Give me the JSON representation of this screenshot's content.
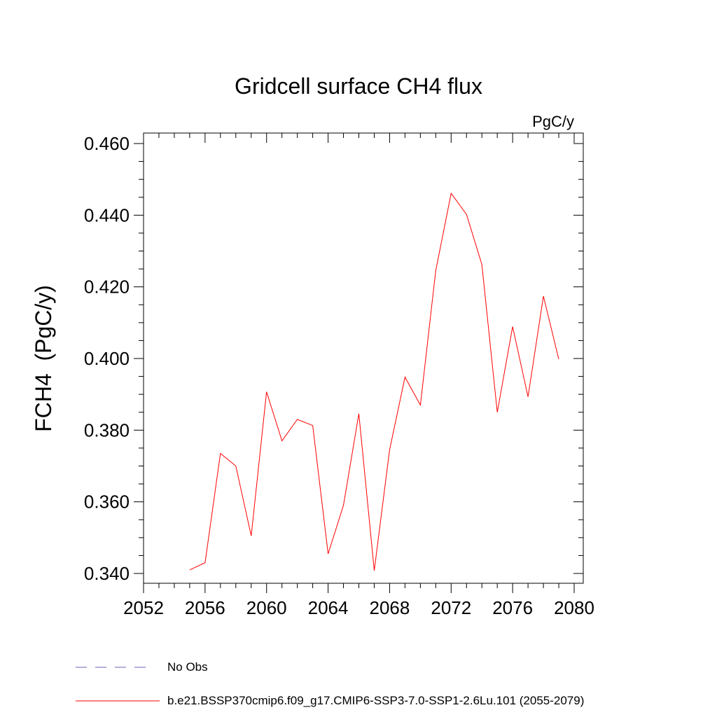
{
  "chart_data": {
    "type": "line",
    "title": "Gridcell surface CH4 flux",
    "units_label": "PgC/y",
    "xlabel": "",
    "ylabel": "FCH4  (PgC/y)",
    "xlim": [
      2052,
      2080
    ],
    "ylim": [
      0.34,
      0.46
    ],
    "x_ticks": [
      "2052",
      "2056",
      "2060",
      "2064",
      "2068",
      "2072",
      "2076",
      "2080"
    ],
    "y_ticks": [
      "0.340",
      "0.360",
      "0.380",
      "0.400",
      "0.420",
      "0.440",
      "0.460"
    ],
    "grid": false,
    "legend_position": "bottom-left",
    "series": [
      {
        "name": "b.e21.BSSP370cmip6.f09_g17.CMIP6-SSP3-7.0-SSP1-2.6Lu.101 (2055-2079)",
        "color": "#ff0000",
        "line_style": "solid",
        "x": [
          2055,
          2056,
          2057,
          2058,
          2059,
          2060,
          2061,
          2062,
          2063,
          2064,
          2065,
          2066,
          2067,
          2068,
          2069,
          2070,
          2071,
          2072,
          2073,
          2074,
          2075,
          2076,
          2077,
          2078,
          2079
        ],
        "y": [
          0.341,
          0.343,
          0.3735,
          0.37,
          0.3505,
          0.3907,
          0.377,
          0.383,
          0.3813,
          0.3455,
          0.359,
          0.3846,
          0.3408,
          0.3745,
          0.3948,
          0.387,
          0.4245,
          0.4461,
          0.4402,
          0.4262,
          0.385,
          0.4089,
          0.3893,
          0.4174,
          0.3998
        ]
      }
    ],
    "legend": [
      {
        "label": "No Obs",
        "color": "#6b5fb5",
        "line_style": "dashed"
      },
      {
        "label": "b.e21.BSSP370cmip6.f09_g17.CMIP6-SSP3-7.0-SSP1-2.6Lu.101 (2055-2079)",
        "color": "#ff0000",
        "line_style": "solid"
      }
    ]
  }
}
